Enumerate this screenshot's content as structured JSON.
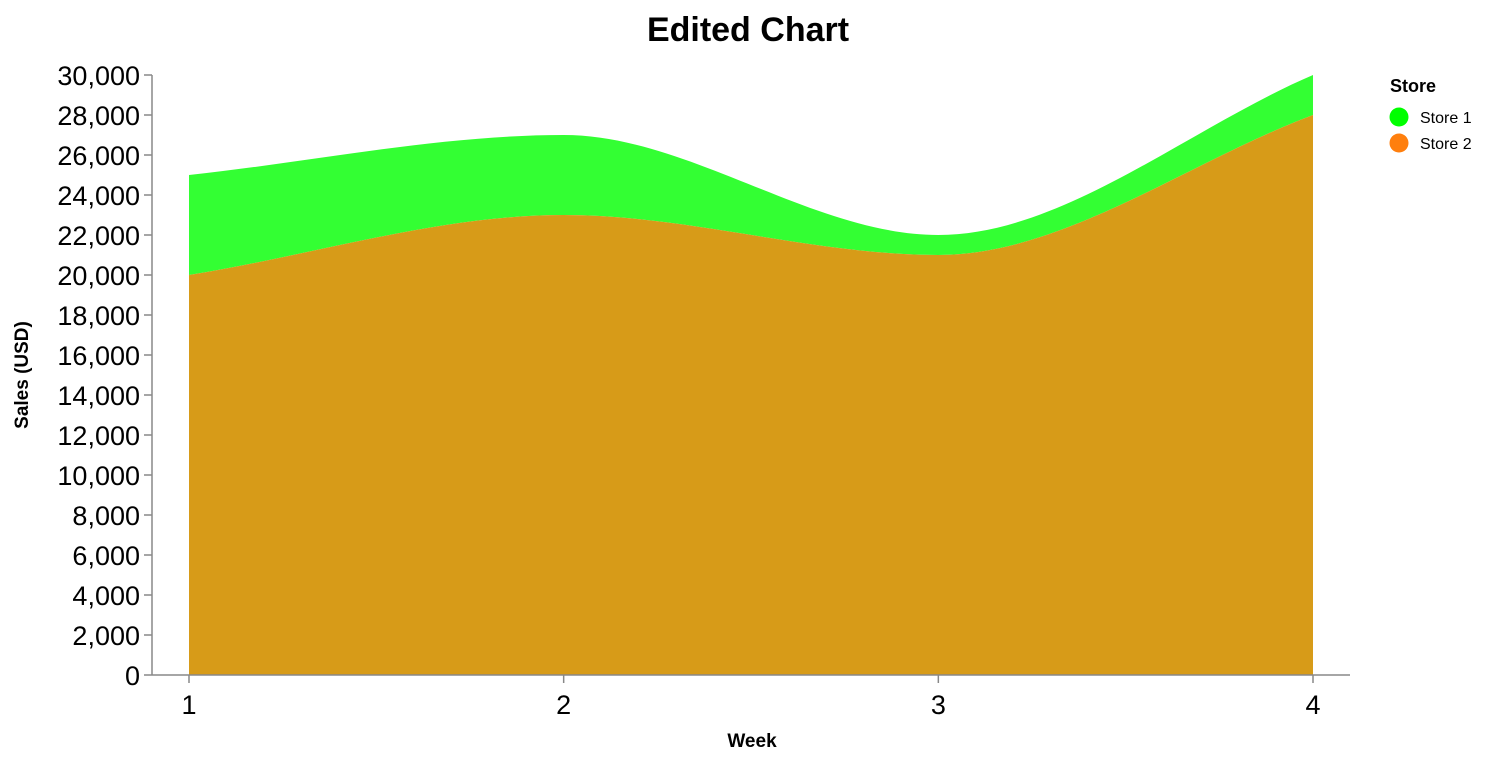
{
  "chart_data": {
    "type": "area",
    "stacked": true,
    "interpolation": "smooth",
    "title": "Edited Chart",
    "xlabel": "Week",
    "ylabel": "Sales (USD)",
    "x": [
      1,
      2,
      3,
      4
    ],
    "x_tick_labels": [
      "1",
      "2",
      "3",
      "4"
    ],
    "ylim": [
      0,
      30000
    ],
    "y_ticks": [
      0,
      2000,
      4000,
      6000,
      8000,
      10000,
      12000,
      14000,
      16000,
      18000,
      20000,
      22000,
      24000,
      26000,
      28000,
      30000
    ],
    "y_tick_labels": [
      "0",
      "2,000",
      "4,000",
      "6,000",
      "8,000",
      "10,000",
      "12,000",
      "14,000",
      "16,000",
      "18,000",
      "20,000",
      "22,000",
      "24,000",
      "26,000",
      "28,000",
      "30,000"
    ],
    "grid": false,
    "legend": {
      "title": "Store",
      "placement": "right"
    },
    "series": [
      {
        "name": "Store 1",
        "values": [
          5000,
          4000,
          1000,
          2000
        ],
        "legend_color": "#00ff00",
        "fill_color": "#33ff33"
      },
      {
        "name": "Store 2",
        "values": [
          20000,
          23000,
          21000,
          28000
        ],
        "legend_color": "#ff7f0e",
        "fill_color": "#d79b18"
      }
    ]
  }
}
